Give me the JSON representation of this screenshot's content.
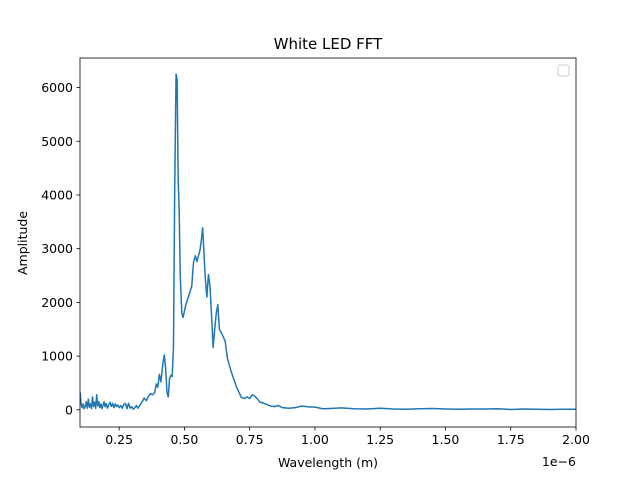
{
  "chart_data": {
    "type": "line",
    "title": "White LED FFT",
    "xlabel": "Wavelength (m)",
    "ylabel": "Amplitude",
    "x_offset_label": "1e−6",
    "xlim": [
      0.1,
      2.0
    ],
    "ylim": [
      -320,
      6550
    ],
    "x_ticks": [
      0.25,
      0.5,
      0.75,
      1.0,
      1.25,
      1.5,
      1.75,
      2.0
    ],
    "x_tick_labels": [
      "0.25",
      "0.50",
      "0.75",
      "1.00",
      "1.25",
      "1.50",
      "1.75",
      "2.00"
    ],
    "y_ticks": [
      0,
      1000,
      2000,
      3000,
      4000,
      5000,
      6000
    ],
    "y_tick_labels": [
      "0",
      "1000",
      "2000",
      "3000",
      "4000",
      "5000",
      "6000"
    ],
    "grid": false,
    "legend": {
      "placement": "upper-right",
      "entries": []
    },
    "color": "#1f77b4",
    "series": [
      {
        "points": [
          [
            0.1,
            330
          ],
          [
            0.104,
            120
          ],
          [
            0.108,
            40
          ],
          [
            0.112,
            110
          ],
          [
            0.116,
            20
          ],
          [
            0.12,
            60
          ],
          [
            0.124,
            150
          ],
          [
            0.128,
            30
          ],
          [
            0.132,
            200
          ],
          [
            0.136,
            50
          ],
          [
            0.14,
            110
          ],
          [
            0.144,
            20
          ],
          [
            0.148,
            240
          ],
          [
            0.152,
            60
          ],
          [
            0.156,
            140
          ],
          [
            0.16,
            30
          ],
          [
            0.164,
            280
          ],
          [
            0.168,
            70
          ],
          [
            0.172,
            150
          ],
          [
            0.176,
            40
          ],
          [
            0.18,
            110
          ],
          [
            0.184,
            20
          ],
          [
            0.188,
            80
          ],
          [
            0.192,
            150
          ],
          [
            0.196,
            60
          ],
          [
            0.2,
            120
          ],
          [
            0.205,
            30
          ],
          [
            0.21,
            90
          ],
          [
            0.215,
            140
          ],
          [
            0.22,
            60
          ],
          [
            0.225,
            120
          ],
          [
            0.23,
            40
          ],
          [
            0.235,
            110
          ],
          [
            0.24,
            60
          ],
          [
            0.245,
            90
          ],
          [
            0.25,
            40
          ],
          [
            0.256,
            80
          ],
          [
            0.262,
            30
          ],
          [
            0.268,
            100
          ],
          [
            0.274,
            120
          ],
          [
            0.28,
            20
          ],
          [
            0.286,
            120
          ],
          [
            0.292,
            30
          ],
          [
            0.298,
            60
          ],
          [
            0.304,
            10
          ],
          [
            0.31,
            40
          ],
          [
            0.316,
            80
          ],
          [
            0.322,
            30
          ],
          [
            0.33,
            90
          ],
          [
            0.338,
            150
          ],
          [
            0.346,
            220
          ],
          [
            0.354,
            170
          ],
          [
            0.362,
            250
          ],
          [
            0.37,
            300
          ],
          [
            0.378,
            280
          ],
          [
            0.386,
            320
          ],
          [
            0.392,
            480
          ],
          [
            0.398,
            420
          ],
          [
            0.404,
            660
          ],
          [
            0.41,
            520
          ],
          [
            0.418,
            880
          ],
          [
            0.423,
            1020
          ],
          [
            0.428,
            780
          ],
          [
            0.433,
            330
          ],
          [
            0.438,
            240
          ],
          [
            0.443,
            580
          ],
          [
            0.448,
            640
          ],
          [
            0.453,
            620
          ],
          [
            0.458,
            1150
          ],
          [
            0.463,
            4200
          ],
          [
            0.468,
            6250
          ],
          [
            0.472,
            6150
          ],
          [
            0.476,
            4300
          ],
          [
            0.48,
            3700
          ],
          [
            0.484,
            2500
          ],
          [
            0.49,
            1800
          ],
          [
            0.495,
            1720
          ],
          [
            0.505,
            1950
          ],
          [
            0.515,
            2100
          ],
          [
            0.528,
            2300
          ],
          [
            0.535,
            2750
          ],
          [
            0.542,
            2870
          ],
          [
            0.548,
            2760
          ],
          [
            0.553,
            2850
          ],
          [
            0.56,
            2980
          ],
          [
            0.566,
            3200
          ],
          [
            0.57,
            3390
          ],
          [
            0.575,
            2900
          ],
          [
            0.58,
            2450
          ],
          [
            0.586,
            2100
          ],
          [
            0.592,
            2520
          ],
          [
            0.598,
            2300
          ],
          [
            0.604,
            1750
          ],
          [
            0.61,
            1160
          ],
          [
            0.616,
            1500
          ],
          [
            0.622,
            1800
          ],
          [
            0.628,
            1960
          ],
          [
            0.634,
            1500
          ],
          [
            0.645,
            1400
          ],
          [
            0.656,
            1280
          ],
          [
            0.665,
            950
          ],
          [
            0.68,
            700
          ],
          [
            0.7,
            420
          ],
          [
            0.718,
            230
          ],
          [
            0.73,
            210
          ],
          [
            0.74,
            240
          ],
          [
            0.75,
            210
          ],
          [
            0.76,
            280
          ],
          [
            0.77,
            250
          ],
          [
            0.78,
            200
          ],
          [
            0.79,
            140
          ],
          [
            0.8,
            130
          ],
          [
            0.815,
            100
          ],
          [
            0.83,
            70
          ],
          [
            0.845,
            60
          ],
          [
            0.86,
            80
          ],
          [
            0.875,
            40
          ],
          [
            0.9,
            30
          ],
          [
            0.925,
            40
          ],
          [
            0.95,
            70
          ],
          [
            0.975,
            55
          ],
          [
            1.0,
            50
          ],
          [
            1.03,
            20
          ],
          [
            1.06,
            25
          ],
          [
            1.1,
            35
          ],
          [
            1.15,
            20
          ],
          [
            1.2,
            15
          ],
          [
            1.25,
            30
          ],
          [
            1.3,
            15
          ],
          [
            1.35,
            10
          ],
          [
            1.4,
            20
          ],
          [
            1.45,
            25
          ],
          [
            1.5,
            15
          ],
          [
            1.55,
            10
          ],
          [
            1.6,
            15
          ],
          [
            1.65,
            15
          ],
          [
            1.7,
            20
          ],
          [
            1.75,
            5
          ],
          [
            1.8,
            15
          ],
          [
            1.85,
            10
          ],
          [
            1.9,
            5
          ],
          [
            1.95,
            10
          ],
          [
            2.0,
            10
          ]
        ]
      }
    ]
  }
}
